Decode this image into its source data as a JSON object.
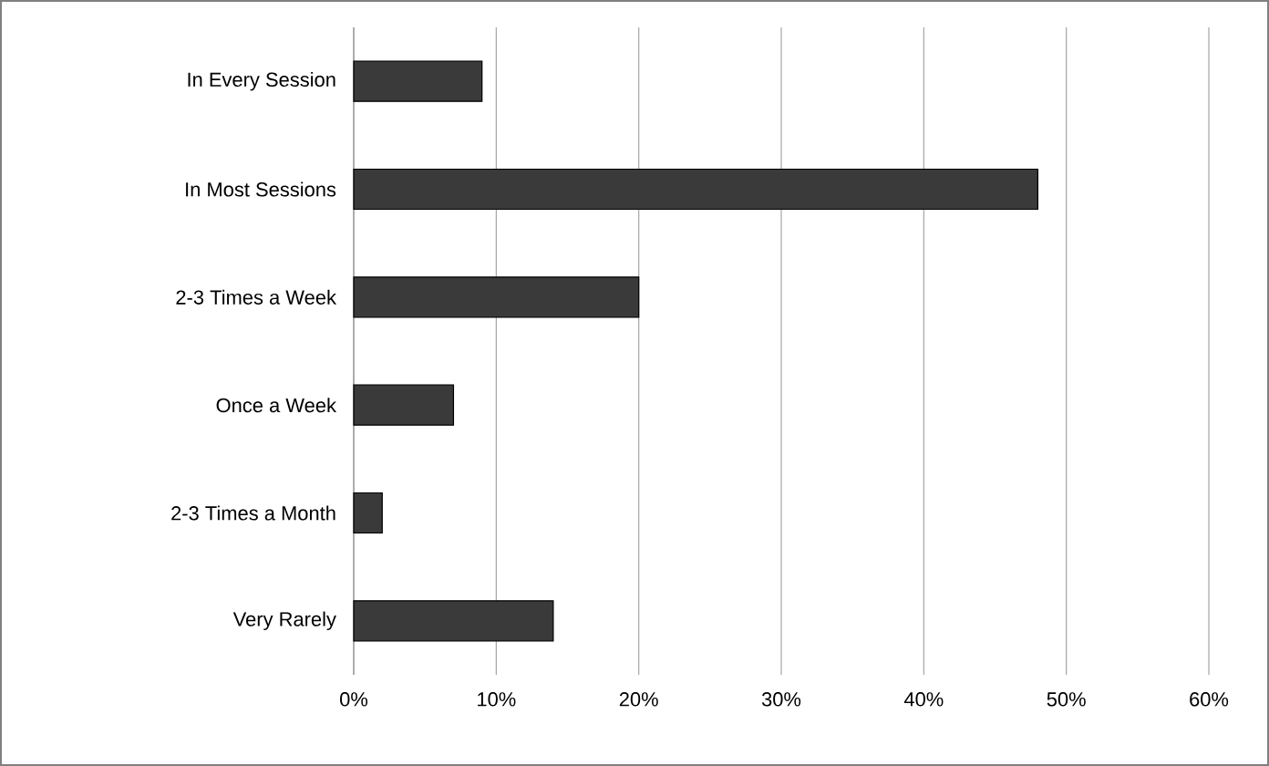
{
  "chart_data": {
    "type": "bar",
    "orientation": "horizontal",
    "categories": [
      "In Every Session",
      "In Most Sessions",
      "2-3 Times a Week",
      "Once a Week",
      "2-3 Times a Month",
      "Very Rarely"
    ],
    "values": [
      9,
      48,
      20,
      7,
      2,
      14
    ],
    "color": "#3a3a3a",
    "xlim": [
      0,
      60
    ],
    "xticks": [
      {
        "value": 0,
        "label": "0%"
      },
      {
        "value": 10,
        "label": "10%"
      },
      {
        "value": 20,
        "label": "20%"
      },
      {
        "value": 30,
        "label": "30%"
      },
      {
        "value": 40,
        "label": "40%"
      },
      {
        "value": 50,
        "label": "50%"
      },
      {
        "value": 60,
        "label": "60%"
      }
    ],
    "grid": "x"
  }
}
